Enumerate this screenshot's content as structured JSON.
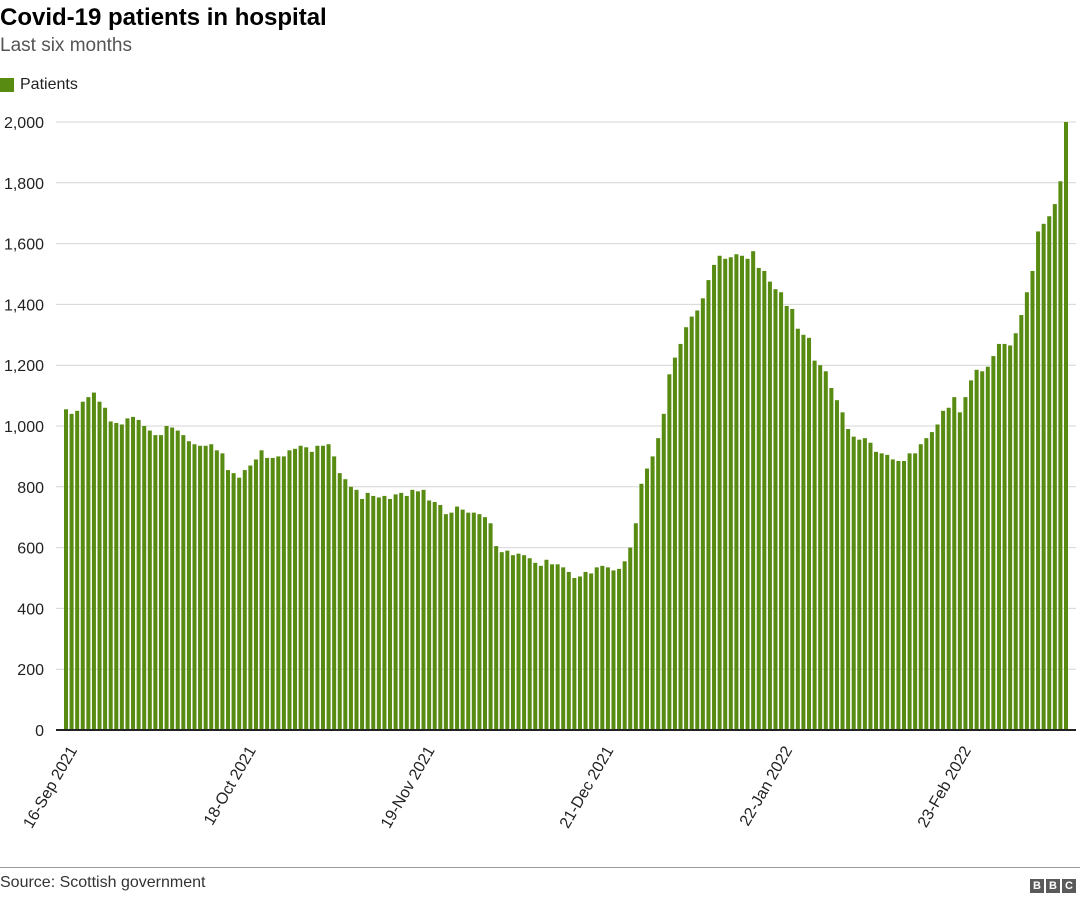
{
  "chart_data": {
    "type": "bar",
    "title": "Covid-19 patients in hospital",
    "subtitle": "Last six months",
    "legend": [
      {
        "name": "Patients",
        "color": "#588b11"
      }
    ],
    "color": "#588b11",
    "ylim": [
      0,
      2000
    ],
    "yticks": [
      0,
      200,
      400,
      600,
      800,
      1000,
      1200,
      1400,
      1600,
      1800,
      2000
    ],
    "ytick_labels": [
      "0",
      "200",
      "400",
      "600",
      "800",
      "1,000",
      "1,200",
      "1,400",
      "1,600",
      "1,800",
      "2,000"
    ],
    "xtick_labels": [
      {
        "label": "16-Sep 2021",
        "index": 1
      },
      {
        "label": "18-Oct 2021",
        "index": 33
      },
      {
        "label": "19-Nov 2021",
        "index": 65
      },
      {
        "label": "21-Dec 2021",
        "index": 97
      },
      {
        "label": "22-Jan 2022",
        "index": 129
      },
      {
        "label": "23-Feb 2022",
        "index": 161
      }
    ],
    "start_date": "15-Sep 2021",
    "values": [
      1055,
      1040,
      1050,
      1080,
      1095,
      1110,
      1080,
      1060,
      1015,
      1010,
      1005,
      1025,
      1030,
      1020,
      1000,
      985,
      970,
      970,
      1000,
      995,
      985,
      970,
      950,
      940,
      935,
      935,
      940,
      920,
      910,
      855,
      845,
      830,
      855,
      870,
      890,
      920,
      895,
      895,
      900,
      900,
      920,
      925,
      935,
      930,
      915,
      935,
      935,
      940,
      900,
      845,
      825,
      800,
      790,
      760,
      780,
      770,
      765,
      770,
      760,
      775,
      780,
      770,
      790,
      785,
      790,
      755,
      750,
      740,
      710,
      715,
      735,
      725,
      715,
      715,
      710,
      700,
      680,
      605,
      585,
      590,
      575,
      580,
      575,
      565,
      550,
      540,
      560,
      545,
      545,
      535,
      520,
      500,
      505,
      520,
      515,
      535,
      540,
      535,
      525,
      530,
      555,
      600,
      680,
      810,
      860,
      900,
      960,
      1040,
      1170,
      1225,
      1270,
      1325,
      1360,
      1380,
      1420,
      1480,
      1530,
      1560,
      1550,
      1555,
      1565,
      1560,
      1550,
      1575,
      1520,
      1510,
      1475,
      1450,
      1440,
      1395,
      1385,
      1320,
      1300,
      1290,
      1215,
      1200,
      1180,
      1125,
      1085,
      1045,
      990,
      965,
      955,
      960,
      945,
      915,
      910,
      905,
      890,
      885,
      885,
      910,
      910,
      940,
      960,
      980,
      1005,
      1050,
      1060,
      1095,
      1045,
      1095,
      1150,
      1185,
      1180,
      1195,
      1230,
      1270,
      1270,
      1265,
      1305,
      1365,
      1440,
      1510,
      1640,
      1665,
      1690,
      1730,
      1805,
      2000
    ]
  },
  "footer": {
    "source": "Source: Scottish government",
    "brand": [
      "B",
      "B",
      "C"
    ]
  }
}
